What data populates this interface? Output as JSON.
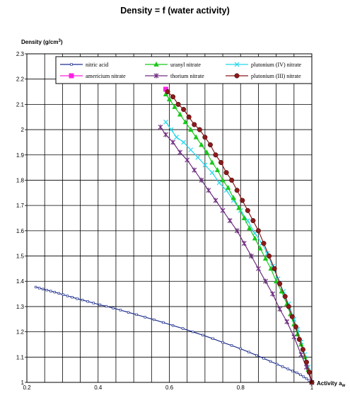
{
  "chart_data": {
    "type": "line",
    "title": "Density = f (water activity)",
    "ylabel": "Density (g/cm",
    "ylabel_sup": "3",
    "ylabel_suffix": ")",
    "xlabel": "Activity a",
    "xlabel_sub": "w",
    "xlim": [
      0.2,
      1.0
    ],
    "ylim": [
      1.0,
      2.3
    ],
    "x_ticks": [
      0.2,
      0.4,
      0.6,
      0.8,
      1.0
    ],
    "x_tick_labels": [
      "0.2",
      "0.4",
      "0.6",
      "0.8",
      "1"
    ],
    "x_grid_step": 0.05,
    "y_ticks": [
      1.0,
      1.1,
      1.2,
      1.3,
      1.4,
      1.5,
      1.6,
      1.7,
      1.8,
      1.9,
      2.0,
      2.1,
      2.2,
      2.3
    ],
    "y_tick_labels": [
      "1",
      "1.1",
      "1.2",
      "1.3",
      "1.4",
      "1.5",
      "1.6",
      "1.7",
      "1.8",
      "1.9",
      "2",
      "2.1",
      "2.2",
      "2.3"
    ],
    "grid": true,
    "legend_position": "top",
    "series": [
      {
        "name": "nitric acid",
        "color": "#1f2f8f",
        "marker": "square-open",
        "x": [
          0.225,
          0.235,
          0.245,
          0.256,
          0.267,
          0.278,
          0.29,
          0.302,
          0.314,
          0.327,
          0.341,
          0.356,
          0.371,
          0.387,
          0.405,
          0.423,
          0.442,
          0.463,
          0.485,
          0.508,
          0.532,
          0.557,
          0.583,
          0.61,
          0.638,
          0.666,
          0.694,
          0.722,
          0.75,
          0.775,
          0.8,
          0.823,
          0.845,
          0.865,
          0.884,
          0.902,
          0.918,
          0.933,
          0.946,
          0.958,
          0.968,
          0.977,
          0.985,
          0.992,
          1.0
        ],
        "y": [
          1.377,
          1.373,
          1.369,
          1.365,
          1.361,
          1.357,
          1.352,
          1.347,
          1.342,
          1.337,
          1.331,
          1.326,
          1.32,
          1.314,
          1.307,
          1.301,
          1.294,
          1.286,
          1.277,
          1.268,
          1.258,
          1.248,
          1.237,
          1.225,
          1.213,
          1.2,
          1.187,
          1.173,
          1.158,
          1.146,
          1.133,
          1.12,
          1.107,
          1.095,
          1.083,
          1.072,
          1.062,
          1.053,
          1.045,
          1.038,
          1.03,
          1.022,
          1.015,
          1.008,
          1.0
        ]
      },
      {
        "name": "uranyl nitrate",
        "color": "#19c819",
        "marker": "triangle",
        "x": [
          0.59,
          0.6,
          0.615,
          0.63,
          0.645,
          0.66,
          0.675,
          0.69,
          0.705,
          0.72,
          0.735,
          0.75,
          0.765,
          0.78,
          0.795,
          0.81,
          0.825,
          0.84,
          0.855,
          0.87,
          0.885,
          0.9,
          0.915,
          0.93,
          0.94,
          0.95,
          0.96,
          0.97,
          0.98,
          0.99,
          1.0
        ],
        "y": [
          2.14,
          2.12,
          2.09,
          2.06,
          2.03,
          2.0,
          1.97,
          1.94,
          1.91,
          1.87,
          1.84,
          1.8,
          1.77,
          1.73,
          1.69,
          1.65,
          1.61,
          1.57,
          1.53,
          1.49,
          1.45,
          1.4,
          1.36,
          1.31,
          1.27,
          1.23,
          1.19,
          1.15,
          1.1,
          1.05,
          1.0
        ]
      },
      {
        "name": "plutonium (IV) nitrate",
        "color": "#22d7ee",
        "marker": "x",
        "x": [
          0.59,
          0.605,
          0.62,
          0.64,
          0.66,
          0.68,
          0.7,
          0.72,
          0.74,
          0.76,
          0.78,
          0.8,
          0.82,
          0.84,
          0.86,
          0.875,
          0.89,
          0.905,
          0.92,
          0.935,
          0.95,
          0.96,
          0.97,
          0.98,
          0.99,
          1.0
        ],
        "y": [
          2.03,
          2.0,
          1.97,
          1.95,
          1.92,
          1.89,
          1.86,
          1.83,
          1.79,
          1.76,
          1.72,
          1.68,
          1.64,
          1.59,
          1.55,
          1.51,
          1.46,
          1.41,
          1.36,
          1.31,
          1.25,
          1.21,
          1.16,
          1.11,
          1.06,
          1.0
        ]
      },
      {
        "name": "americium nitrate",
        "color": "#ff1fe0",
        "marker": "square",
        "x": [
          0.59
        ],
        "y": [
          2.16
        ]
      },
      {
        "name": "thorium nitrate",
        "color": "#6e2e80",
        "marker": "star",
        "x": [
          0.575,
          0.59,
          0.61,
          0.63,
          0.65,
          0.67,
          0.69,
          0.71,
          0.73,
          0.75,
          0.77,
          0.79,
          0.81,
          0.83,
          0.85,
          0.87,
          0.89,
          0.91,
          0.93,
          0.95,
          0.97,
          0.985,
          1.0
        ],
        "y": [
          2.01,
          1.98,
          1.95,
          1.91,
          1.88,
          1.84,
          1.8,
          1.76,
          1.72,
          1.68,
          1.64,
          1.6,
          1.55,
          1.5,
          1.45,
          1.4,
          1.35,
          1.29,
          1.24,
          1.18,
          1.11,
          1.06,
          1.0
        ]
      },
      {
        "name": "plutonium (III) nitrate",
        "color": "#8b1a1a",
        "marker": "circle",
        "x": [
          0.595,
          0.61,
          0.625,
          0.64,
          0.655,
          0.67,
          0.685,
          0.7,
          0.715,
          0.73,
          0.745,
          0.76,
          0.775,
          0.79,
          0.805,
          0.82,
          0.835,
          0.85,
          0.865,
          0.88,
          0.895,
          0.91,
          0.925,
          0.935,
          0.945,
          0.955,
          0.965,
          0.975,
          0.985,
          0.993,
          1.0
        ],
        "y": [
          2.15,
          2.13,
          2.1,
          2.08,
          2.05,
          2.02,
          2.0,
          1.97,
          1.94,
          1.9,
          1.87,
          1.83,
          1.8,
          1.76,
          1.72,
          1.68,
          1.64,
          1.6,
          1.55,
          1.5,
          1.45,
          1.39,
          1.34,
          1.3,
          1.26,
          1.22,
          1.17,
          1.13,
          1.08,
          1.04,
          1.0
        ]
      }
    ]
  }
}
